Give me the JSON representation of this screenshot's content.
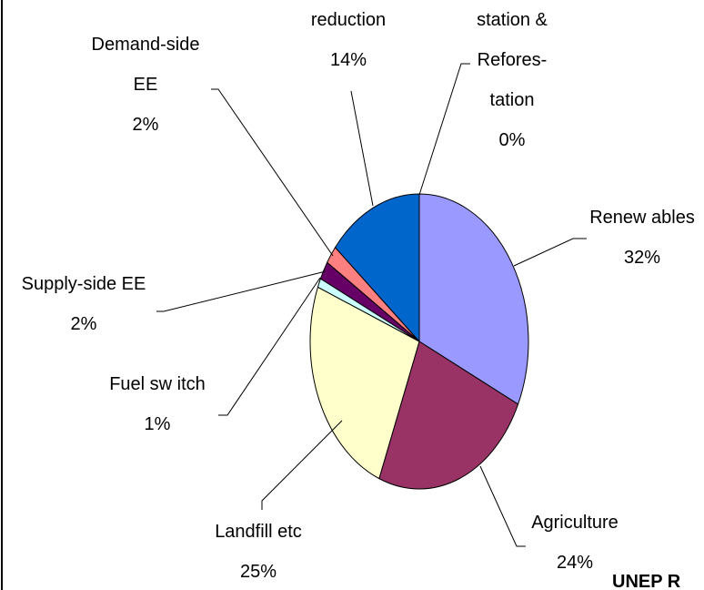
{
  "chart_data": {
    "type": "pie",
    "categories": [
      "station &\nRefores-\ntation",
      "Renew ables",
      "Agriculture",
      "Landfill etc",
      "Fuel sw itch",
      "Supply-side EE",
      "Demand-side\nEE",
      "reduction"
    ],
    "values": [
      0,
      32,
      24,
      25,
      1,
      2,
      2,
      14
    ],
    "value_labels": [
      "0%",
      "32%",
      "24%",
      "25%",
      "1%",
      "2%",
      "2%",
      "14%"
    ],
    "colors": [
      "#000080",
      "#9999ff",
      "#993366",
      "#ffffcc",
      "#ccffff",
      "#660066",
      "#ff8080",
      "#0066cc"
    ],
    "footer": "UNEP R"
  }
}
